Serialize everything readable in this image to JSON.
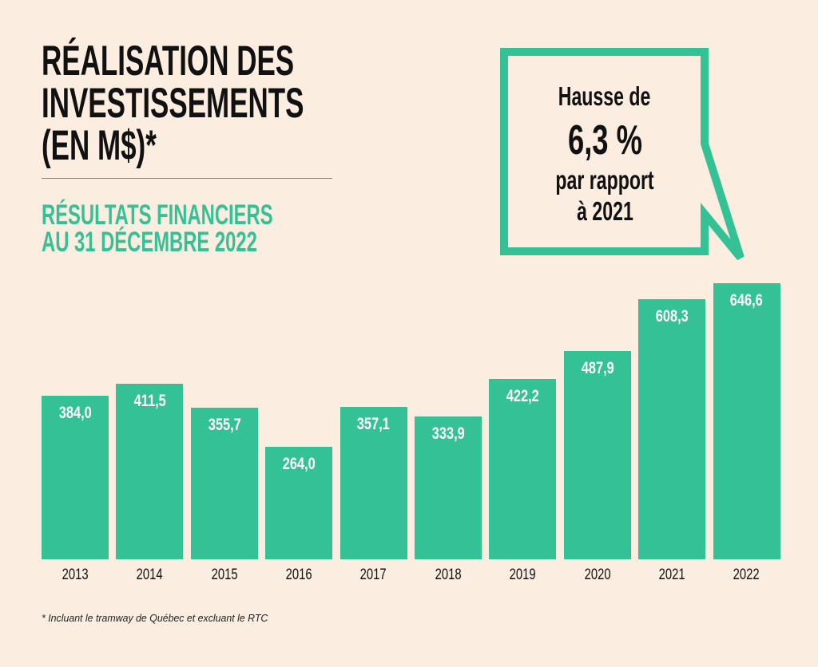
{
  "title_lines": [
    "RÉALISATION DES",
    "INVESTISSEMENTS",
    "(EN M$)*"
  ],
  "subtitle_lines": [
    "RÉSULTATS FINANCIERS",
    "AU 31 DÉCEMBRE 2022"
  ],
  "callout": {
    "line1": "Hausse de",
    "line2": "6,3 %",
    "line3": "par rapport",
    "line4": "à 2021"
  },
  "footnote": "* Incluant le tramway de Québec et excluant le RTC",
  "colors": {
    "background": "#fcede1",
    "accent": "#35c196",
    "text": "#111111"
  },
  "chart_data": {
    "type": "bar",
    "categories": [
      "2013",
      "2014",
      "2015",
      "2016",
      "2017",
      "2018",
      "2019",
      "2020",
      "2021",
      "2022"
    ],
    "values": [
      384.0,
      411.5,
      355.7,
      264.0,
      357.1,
      333.9,
      422.2,
      487.9,
      608.3,
      646.6
    ],
    "value_labels": [
      "384,0",
      "411,5",
      "355,7",
      "264,0",
      "357,1",
      "333,9",
      "422,2",
      "487,9",
      "608,3",
      "646,6"
    ],
    "title": "RÉALISATION DES INVESTISSEMENTS (EN M$)*",
    "xlabel": "",
    "ylabel": "",
    "ylim": [
      0,
      646.6
    ],
    "grid": false,
    "legend": "none"
  }
}
